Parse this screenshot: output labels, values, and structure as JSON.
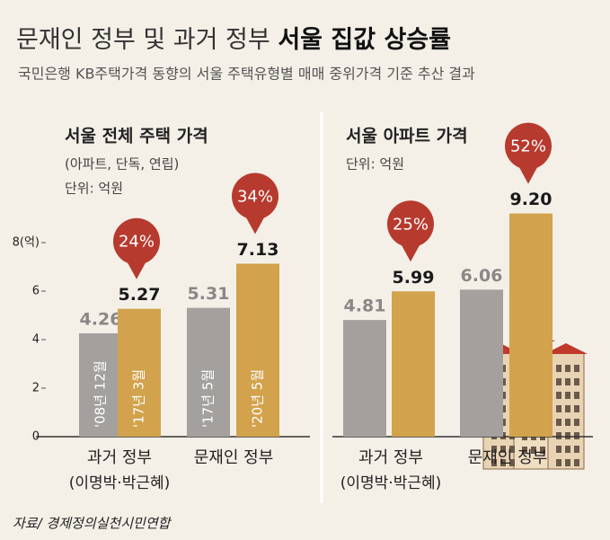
{
  "header": {
    "title": "문재인 정부 및 과거 정부",
    "title_bold": "서울 집값 상승률",
    "subtitle": "국민은행 KB주택가격 동향의 서울 주택유형별 매매 중위가격 기준 추산 결과"
  },
  "source": "자료/ 경제정의실천시민연합",
  "chart_data": [
    {
      "type": "bar",
      "title": "서울 전체 주택 가격",
      "subtitle": "(아파트, 단독, 연립)",
      "unit": "단위: 억원",
      "categories": [
        "과거 정부",
        "문재인 정부"
      ],
      "category_notes": [
        "(이명박·박근혜)",
        null
      ],
      "series": [
        {
          "color": "#a3a09e",
          "values": [
            4.26,
            5.31
          ],
          "value_labels": [
            "4.26",
            "5.31"
          ],
          "labels": [
            "'08년 12월",
            "'17년 5월"
          ]
        },
        {
          "color": "#d2a24c",
          "values": [
            5.27,
            7.13
          ],
          "value_labels": [
            "5.27",
            "7.13"
          ],
          "labels": [
            "'17년 3월",
            "'20년 5월"
          ]
        }
      ],
      "changes": [
        24,
        34
      ],
      "change_labels": [
        "24%",
        "34%"
      ],
      "ylim": [
        0,
        8
      ],
      "yticks": [
        {
          "value": 8,
          "label": "8(억)"
        },
        6,
        4,
        2,
        0
      ]
    },
    {
      "type": "bar",
      "title": "서울 아파트 가격",
      "unit": "단위: 억원",
      "categories": [
        "과거 정부",
        "문재인 정부"
      ],
      "category_notes": [
        "(이명박·박근혜)",
        null
      ],
      "series": [
        {
          "color": "#a3a09e",
          "values": [
            4.81,
            6.06
          ],
          "value_labels": [
            "4.81",
            "6.06"
          ]
        },
        {
          "color": "#d2a24c",
          "values": [
            5.99,
            9.2
          ],
          "value_labels": [
            "5.99",
            "9.20"
          ]
        }
      ],
      "changes": [
        25,
        52
      ],
      "change_labels": [
        "25%",
        "52%"
      ],
      "ylim": [
        0,
        8
      ]
    }
  ]
}
